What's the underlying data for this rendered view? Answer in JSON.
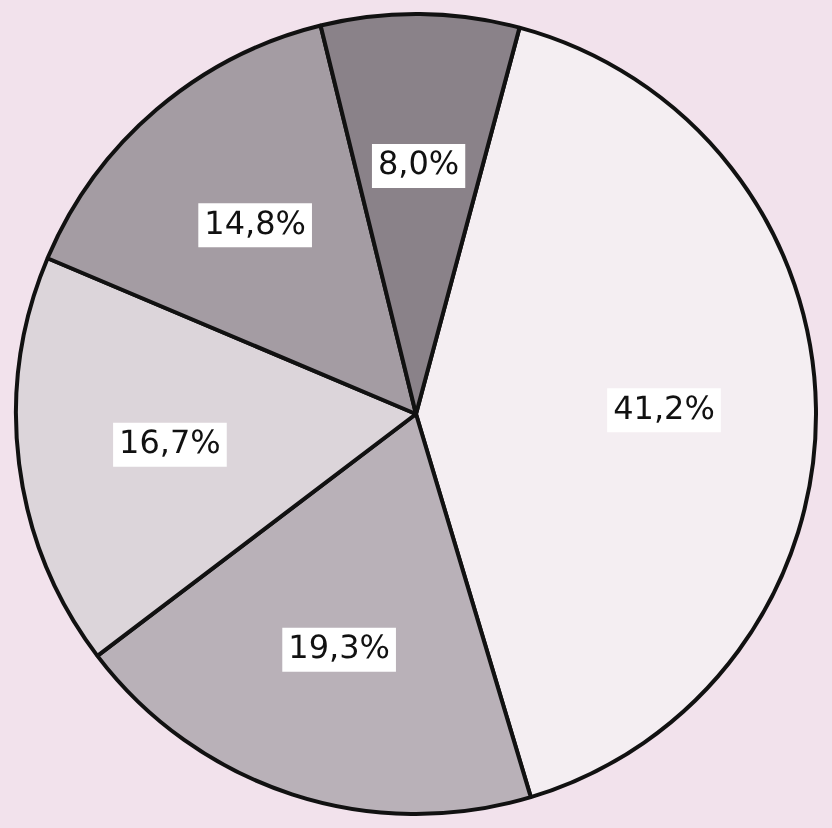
{
  "chart_data": {
    "type": "pie",
    "categories": [
      null,
      null,
      null,
      null,
      null
    ],
    "values": [
      41.2,
      19.3,
      16.7,
      14.8,
      8.0
    ],
    "value_labels": [
      "41,2%",
      "19,3%",
      "16,7%",
      "14,8%",
      "8,0%"
    ],
    "colors": [
      "#f4eef2",
      "#b9b1b8",
      "#dcd5da",
      "#a49ca3",
      "#8a8289"
    ],
    "legend": false
  }
}
